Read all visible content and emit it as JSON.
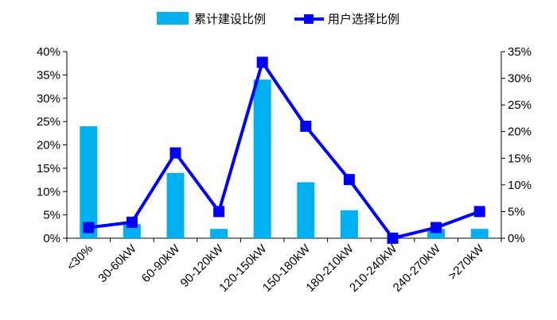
{
  "chart_data": {
    "type": "bar+line",
    "categories": [
      "<30%",
      "30-60kW",
      "60-90kW",
      "90-120kW",
      "120-150kW",
      "150-180kW",
      "180-210kW",
      "210-240kW",
      "240-270kW",
      ">270kW"
    ],
    "series": [
      {
        "name": "累计建设比例",
        "type": "bar",
        "axis": "left",
        "color": "#00b0f0",
        "values": [
          24,
          3,
          14,
          2,
          34,
          12,
          6,
          0,
          2,
          2
        ]
      },
      {
        "name": "用户选择比例",
        "type": "line",
        "axis": "right",
        "color": "#0000ff",
        "marker": "square",
        "values": [
          2,
          3,
          16,
          5,
          33,
          21,
          11,
          0,
          2,
          5
        ]
      }
    ],
    "y_left": {
      "min": 0,
      "max": 40,
      "step": 5,
      "unit": "%"
    },
    "y_right": {
      "min": 0,
      "max": 35,
      "step": 5,
      "unit": "%"
    },
    "legend_position": "top-center",
    "grid": false
  }
}
